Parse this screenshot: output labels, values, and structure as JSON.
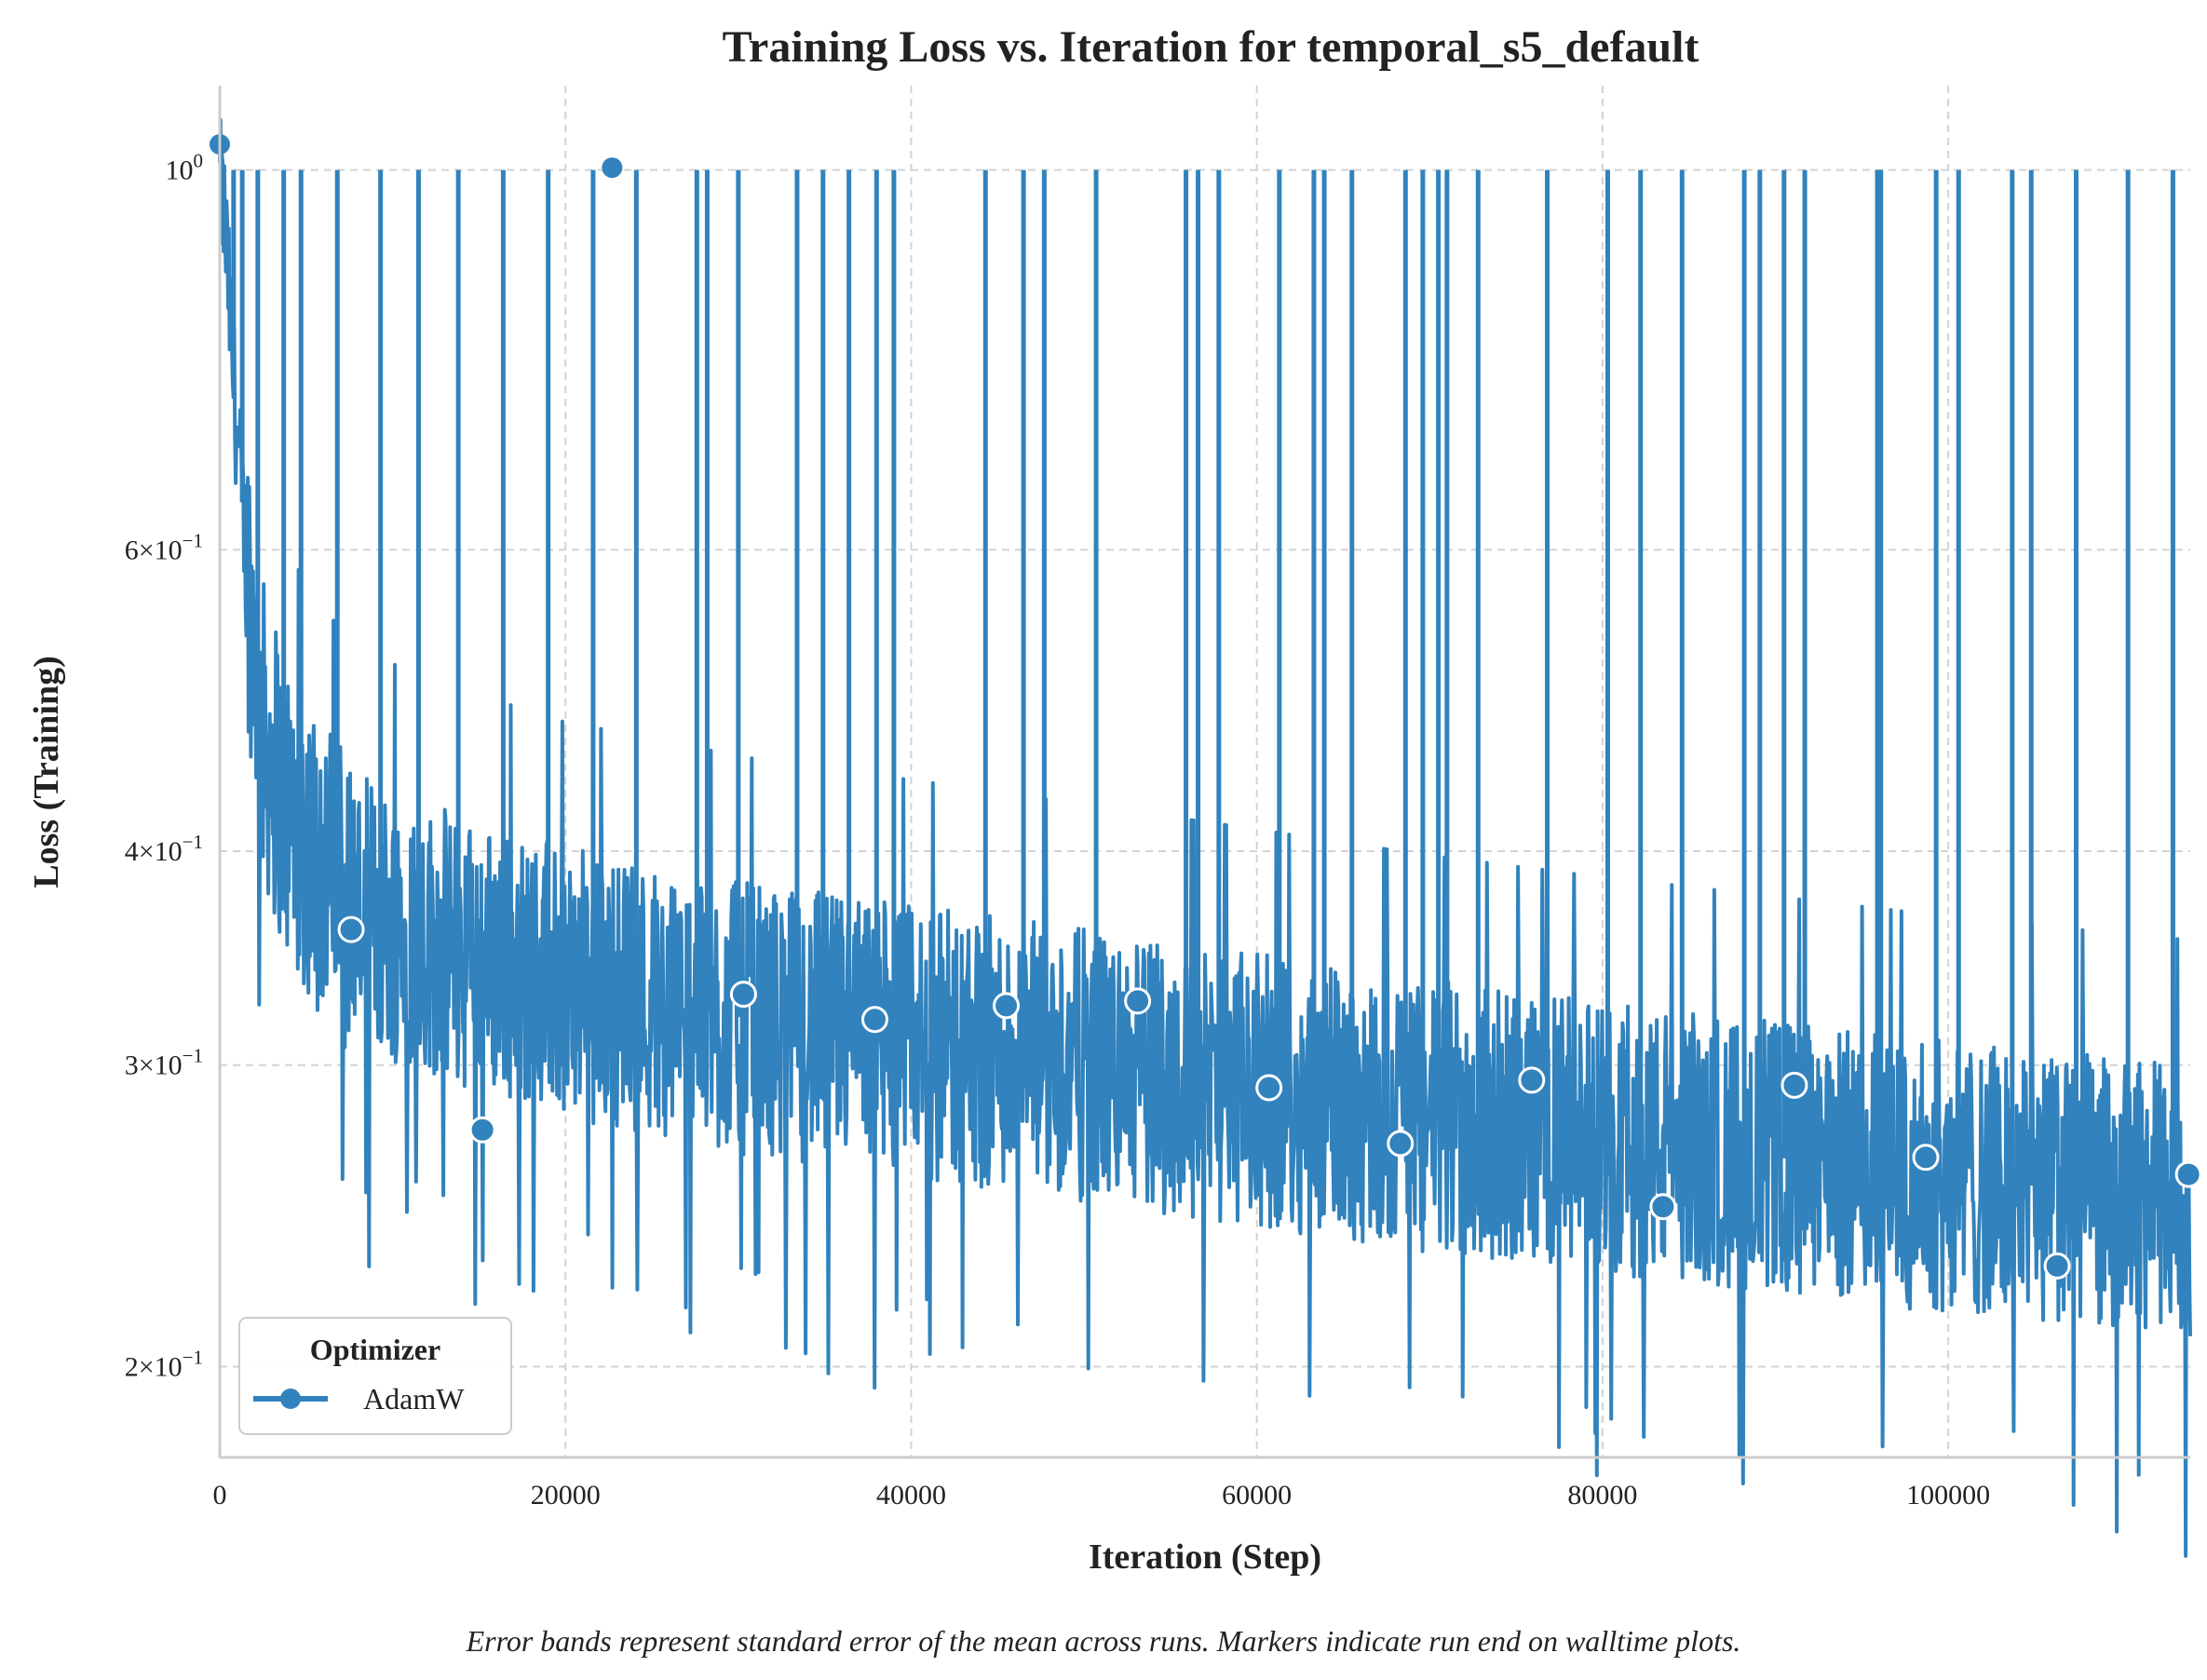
{
  "chart_data": {
    "type": "line",
    "title": "Training Loss vs. Iteration for temporal_s5_default",
    "xlabel": "Iteration (Step)",
    "ylabel": "Loss (Training)",
    "caption": "Error bands represent standard error of the mean across runs. Markers indicate run end on walltime plots.",
    "xlim": [
      0,
      114000
    ],
    "ylim": [
      0.177,
      1.12
    ],
    "yscale": "log",
    "grid": "dashed",
    "x_ticks": [
      0,
      20000,
      40000,
      60000,
      80000,
      100000
    ],
    "x_tick_labels": [
      "0",
      "20000",
      "40000",
      "60000",
      "80000",
      "100000"
    ],
    "y_ticks": [
      {
        "value": 1.0,
        "mant": "",
        "base": "10",
        "exp": "0"
      },
      {
        "value": 0.6,
        "mant": "6×",
        "base": "10",
        "exp": "−1"
      },
      {
        "value": 0.4,
        "mant": "4×",
        "base": "10",
        "exp": "−1"
      },
      {
        "value": 0.3,
        "mant": "3×",
        "base": "10",
        "exp": "−1"
      },
      {
        "value": 0.2,
        "mant": "2×",
        "base": "10",
        "exp": "−1"
      }
    ],
    "legend": {
      "title": "Optimizer",
      "position": "lower-left"
    },
    "series": [
      {
        "name": "AdamW",
        "color": "#3182bd",
        "trend": [
          [
            0,
            0.98
          ],
          [
            300,
            0.93
          ],
          [
            800,
            0.75
          ],
          [
            1500,
            0.6
          ],
          [
            2500,
            0.47
          ],
          [
            4000,
            0.42
          ],
          [
            6000,
            0.39
          ],
          [
            8000,
            0.37
          ],
          [
            12000,
            0.355
          ],
          [
            16000,
            0.345
          ],
          [
            20000,
            0.335
          ],
          [
            25000,
            0.328
          ],
          [
            30000,
            0.32
          ],
          [
            40000,
            0.31
          ],
          [
            50000,
            0.3
          ],
          [
            60000,
            0.29
          ],
          [
            70000,
            0.28
          ],
          [
            80000,
            0.272
          ],
          [
            90000,
            0.265
          ],
          [
            100000,
            0.258
          ],
          [
            110000,
            0.252
          ],
          [
            114000,
            0.25
          ]
        ],
        "spike_steps": [
          800,
          1300,
          2200,
          3700,
          4700,
          6800,
          9300,
          11500,
          13800,
          16400,
          19000,
          21600,
          24100,
          27600,
          28200,
          30000,
          33400,
          34900,
          36400,
          38000,
          39000,
          44300,
          46500,
          47700,
          50700,
          55900,
          56600,
          57800,
          61300,
          63300,
          63900,
          65500,
          68600,
          69600,
          70500,
          71000,
          72800,
          76800,
          80300,
          82200,
          84600,
          88200,
          89100,
          90500,
          91700,
          95900,
          96100,
          99300,
          100600,
          103700,
          104800,
          107400,
          110400,
          113000
        ],
        "markers": [
          {
            "x": 0,
            "y": 1.035,
            "filled": true
          },
          {
            "x": 22700,
            "y": 1.003,
            "filled": true
          },
          {
            "x": 7600,
            "y": 0.36,
            "filled": false
          },
          {
            "x": 15200,
            "y": 0.275,
            "filled": false
          },
          {
            "x": 30300,
            "y": 0.33,
            "filled": false
          },
          {
            "x": 37900,
            "y": 0.319,
            "filled": false
          },
          {
            "x": 45500,
            "y": 0.325,
            "filled": false
          },
          {
            "x": 53100,
            "y": 0.327,
            "filled": false
          },
          {
            "x": 60700,
            "y": 0.291,
            "filled": false
          },
          {
            "x": 68300,
            "y": 0.27,
            "filled": false
          },
          {
            "x": 75900,
            "y": 0.294,
            "filled": false
          },
          {
            "x": 83500,
            "y": 0.248,
            "filled": false
          },
          {
            "x": 91100,
            "y": 0.292,
            "filled": false
          },
          {
            "x": 98700,
            "y": 0.265,
            "filled": false
          },
          {
            "x": 106300,
            "y": 0.229,
            "filled": false
          },
          {
            "x": 113900,
            "y": 0.259,
            "filled": false
          }
        ]
      }
    ]
  }
}
